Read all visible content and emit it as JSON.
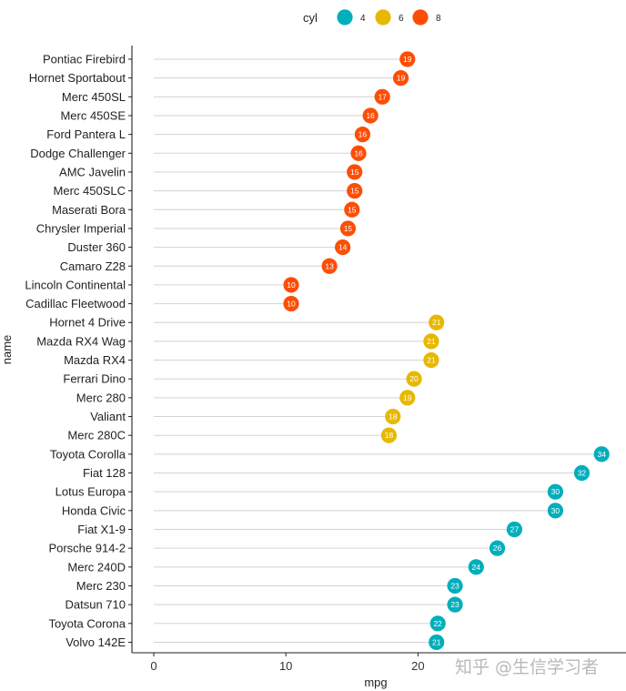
{
  "chart_data": {
    "type": "lollipop",
    "xlabel": "mpg",
    "ylabel": "name",
    "xlim": [
      -1,
      35.5
    ],
    "xticks": [
      0,
      10,
      20
    ],
    "legend": {
      "title": "cyl",
      "position": "top",
      "entries": [
        {
          "label": "4",
          "color": "#00AFBB"
        },
        {
          "label": "6",
          "color": "#E7B800"
        },
        {
          "label": "8",
          "color": "#FC4E07"
        }
      ]
    },
    "points": [
      {
        "name": "Pontiac Firebird",
        "mpg": 19.2,
        "cyl": "8",
        "label": "19"
      },
      {
        "name": "Hornet Sportabout",
        "mpg": 18.7,
        "cyl": "8",
        "label": "19"
      },
      {
        "name": "Merc 450SL",
        "mpg": 17.3,
        "cyl": "8",
        "label": "17"
      },
      {
        "name": "Merc 450SE",
        "mpg": 16.4,
        "cyl": "8",
        "label": "16"
      },
      {
        "name": "Ford Pantera L",
        "mpg": 15.8,
        "cyl": "8",
        "label": "16"
      },
      {
        "name": "Dodge Challenger",
        "mpg": 15.5,
        "cyl": "8",
        "label": "16"
      },
      {
        "name": "AMC Javelin",
        "mpg": 15.2,
        "cyl": "8",
        "label": "15"
      },
      {
        "name": "Merc 450SLC",
        "mpg": 15.2,
        "cyl": "8",
        "label": "15"
      },
      {
        "name": "Maserati Bora",
        "mpg": 15.0,
        "cyl": "8",
        "label": "15"
      },
      {
        "name": "Chrysler Imperial",
        "mpg": 14.7,
        "cyl": "8",
        "label": "15"
      },
      {
        "name": "Duster 360",
        "mpg": 14.3,
        "cyl": "8",
        "label": "14"
      },
      {
        "name": "Camaro Z28",
        "mpg": 13.3,
        "cyl": "8",
        "label": "13"
      },
      {
        "name": "Lincoln Continental",
        "mpg": 10.4,
        "cyl": "8",
        "label": "10"
      },
      {
        "name": "Cadillac Fleetwood",
        "mpg": 10.4,
        "cyl": "8",
        "label": "10"
      },
      {
        "name": "Hornet 4 Drive",
        "mpg": 21.4,
        "cyl": "6",
        "label": "21"
      },
      {
        "name": "Mazda RX4 Wag",
        "mpg": 21.0,
        "cyl": "6",
        "label": "21"
      },
      {
        "name": "Mazda RX4",
        "mpg": 21.0,
        "cyl": "6",
        "label": "21"
      },
      {
        "name": "Ferrari Dino",
        "mpg": 19.7,
        "cyl": "6",
        "label": "20"
      },
      {
        "name": "Merc 280",
        "mpg": 19.2,
        "cyl": "6",
        "label": "19"
      },
      {
        "name": "Valiant",
        "mpg": 18.1,
        "cyl": "6",
        "label": "18"
      },
      {
        "name": "Merc 280C",
        "mpg": 17.8,
        "cyl": "6",
        "label": "18"
      },
      {
        "name": "Toyota Corolla",
        "mpg": 33.9,
        "cyl": "4",
        "label": "34"
      },
      {
        "name": "Fiat 128",
        "mpg": 32.4,
        "cyl": "4",
        "label": "32"
      },
      {
        "name": "Lotus Europa",
        "mpg": 30.4,
        "cyl": "4",
        "label": "30"
      },
      {
        "name": "Honda Civic",
        "mpg": 30.4,
        "cyl": "4",
        "label": "30"
      },
      {
        "name": "Fiat X1-9",
        "mpg": 27.3,
        "cyl": "4",
        "label": "27"
      },
      {
        "name": "Porsche 914-2",
        "mpg": 26.0,
        "cyl": "4",
        "label": "26"
      },
      {
        "name": "Merc 240D",
        "mpg": 24.4,
        "cyl": "4",
        "label": "24"
      },
      {
        "name": "Merc 230",
        "mpg": 22.8,
        "cyl": "4",
        "label": "23"
      },
      {
        "name": "Datsun 710",
        "mpg": 22.8,
        "cyl": "4",
        "label": "23"
      },
      {
        "name": "Toyota Corona",
        "mpg": 21.5,
        "cyl": "4",
        "label": "22"
      },
      {
        "name": "Volvo 142E",
        "mpg": 21.4,
        "cyl": "4",
        "label": "21"
      }
    ]
  },
  "watermark": "知乎 @生信学习者"
}
